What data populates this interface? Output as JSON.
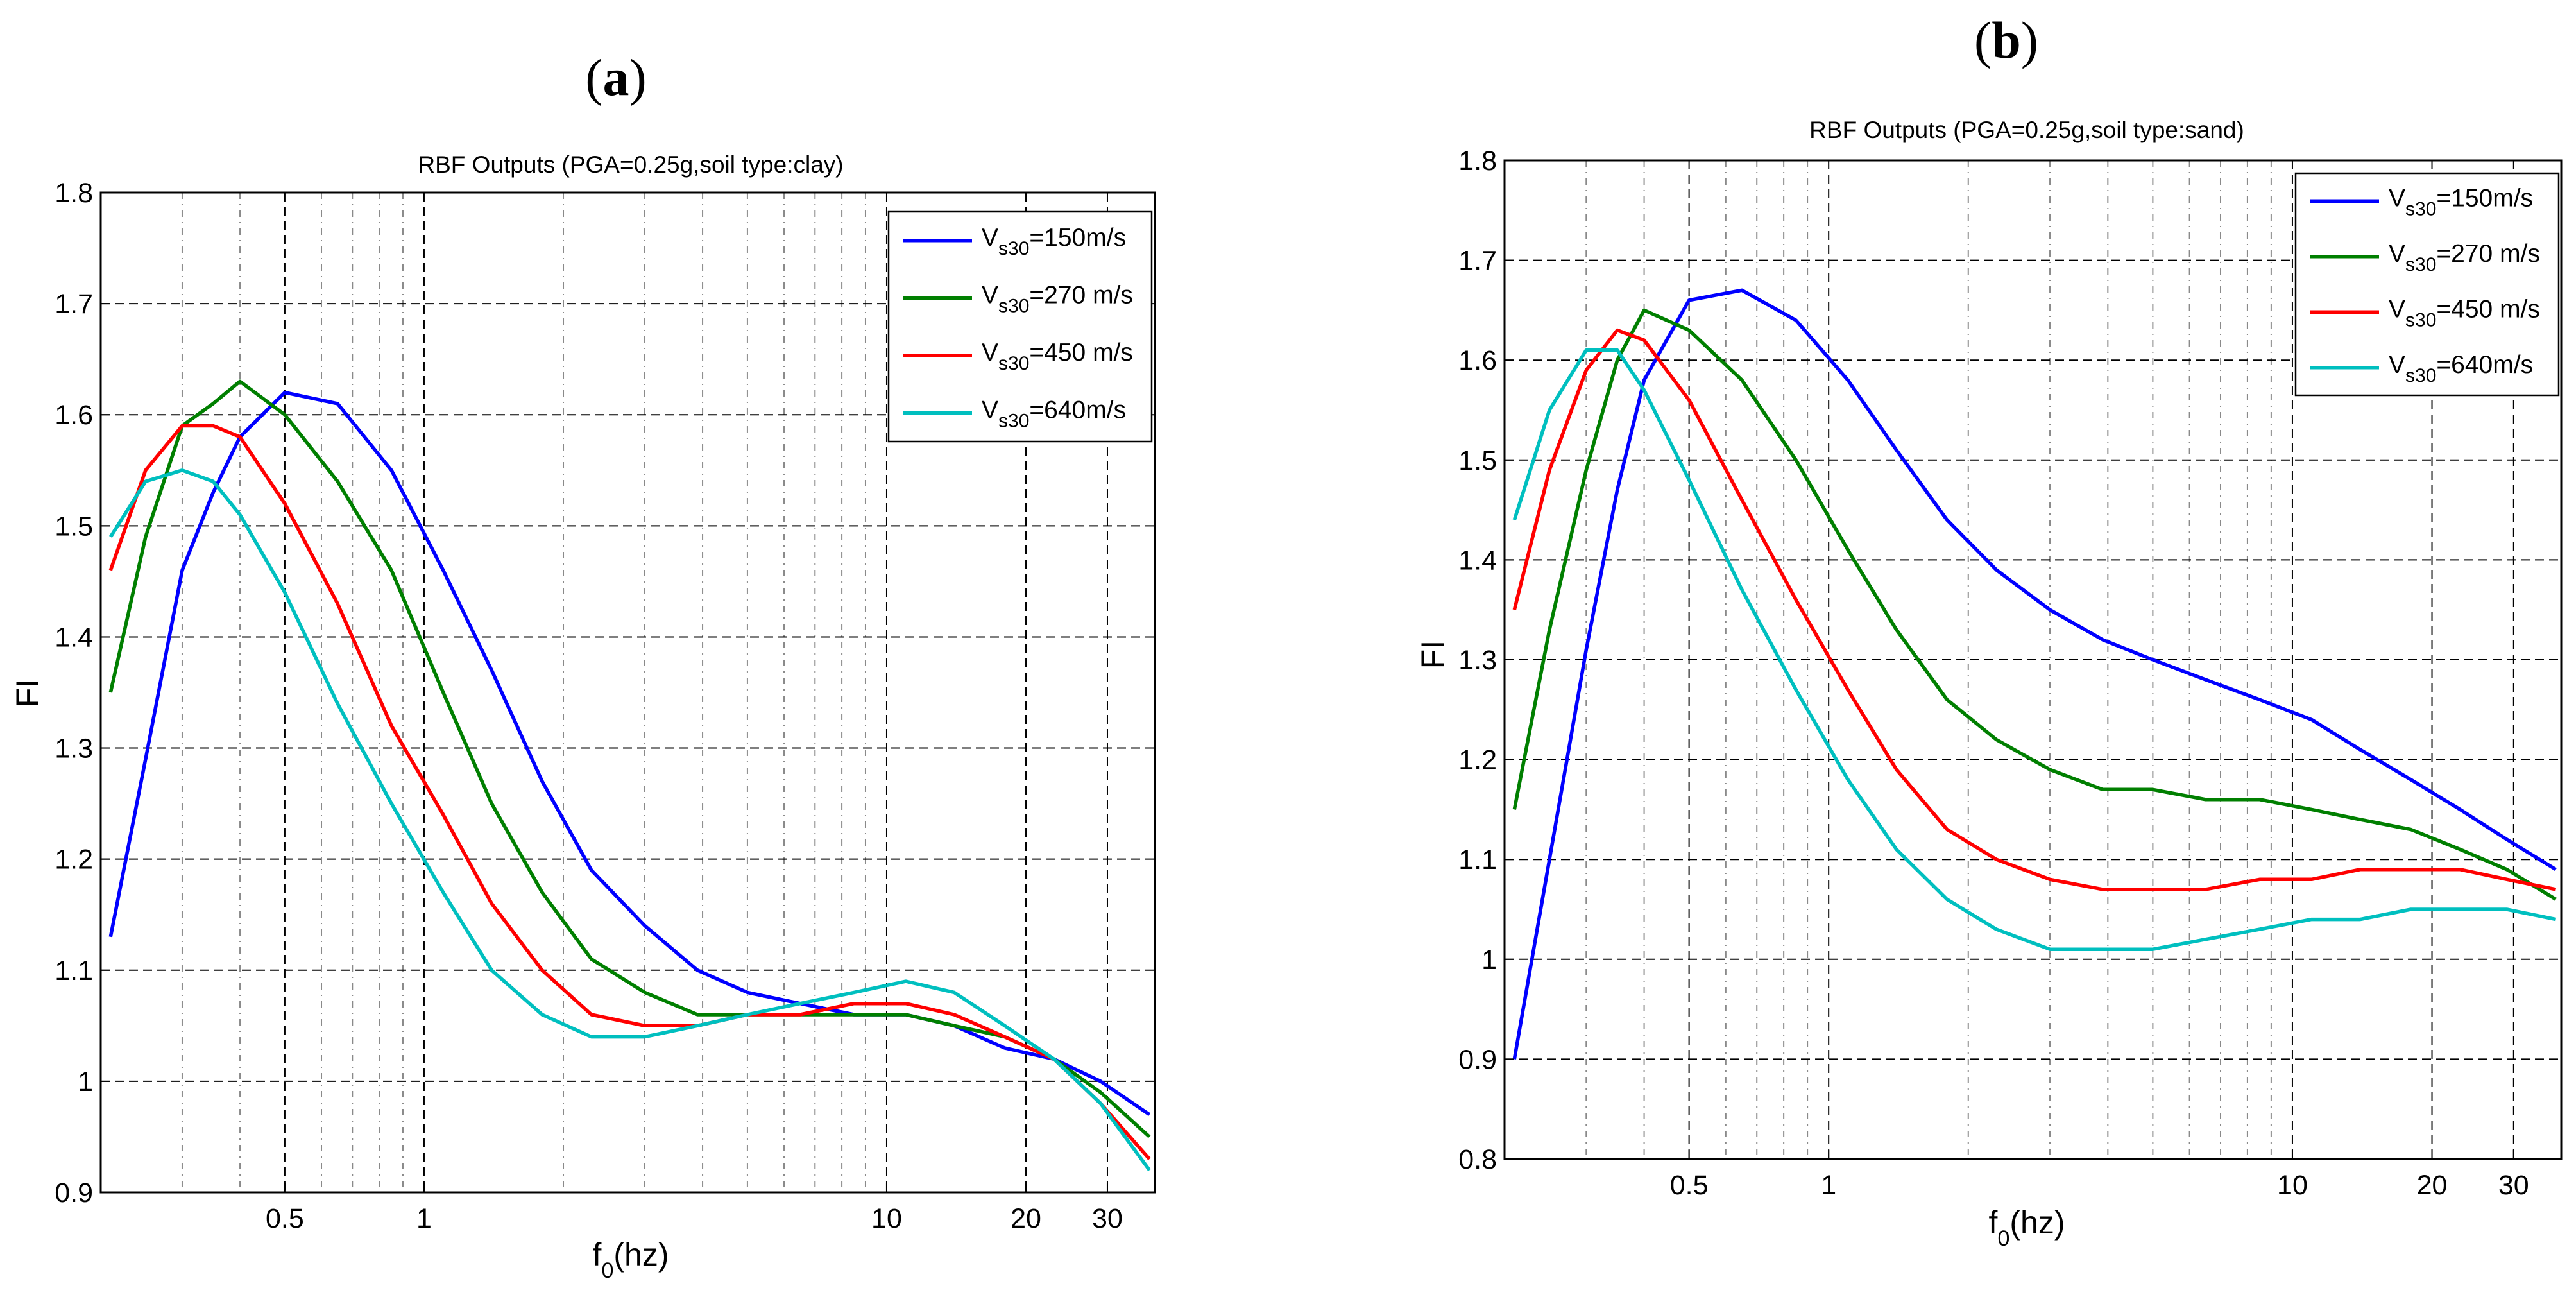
{
  "panels": [
    {
      "label": "(a)",
      "label_letter": "a"
    },
    {
      "label": "(b)",
      "label_letter": "b"
    }
  ],
  "chart_data": [
    {
      "type": "line",
      "title": "RBF Outputs (PGA=0.25g,soil type:clay)",
      "xlabel": "f0(hz)",
      "xlabel_base": "f",
      "xlabel_sub": "0",
      "xlabel_rest": "(hz)",
      "ylabel": "FI",
      "xscale": "log",
      "xlim": [
        0.2,
        38
      ],
      "ylim": [
        0.9,
        1.8
      ],
      "grid": true,
      "legend_position": "top-right",
      "xticks": [
        0.5,
        1,
        10,
        20,
        30
      ],
      "xtick_labels": [
        "0.5",
        "1",
        "10",
        "20",
        "30"
      ],
      "yticks": [
        0.9,
        1.0,
        1.1,
        1.2,
        1.3,
        1.4,
        1.5,
        1.6,
        1.7,
        1.8
      ],
      "ytick_labels": [
        "0.9",
        "1",
        "1.1",
        "1.2",
        "1.3",
        "1.4",
        "1.5",
        "1.6",
        "1.7",
        "1.8"
      ],
      "series": [
        {
          "name": "Vs30=150m/s",
          "label_main": "V",
          "label_sub": "s30",
          "label_rest": "=150m/s",
          "color": "#0000ff",
          "x": [
            0.21,
            0.25,
            0.3,
            0.35,
            0.4,
            0.5,
            0.65,
            0.85,
            1.1,
            1.4,
            1.8,
            2.3,
            3.0,
            3.9,
            5.0,
            6.5,
            8.5,
            11,
            14,
            18,
            23,
            29,
            37
          ],
          "y": [
            1.13,
            1.29,
            1.46,
            1.53,
            1.58,
            1.62,
            1.61,
            1.55,
            1.46,
            1.37,
            1.27,
            1.19,
            1.14,
            1.1,
            1.08,
            1.07,
            1.06,
            1.06,
            1.05,
            1.03,
            1.02,
            1.0,
            0.97
          ]
        },
        {
          "name": "Vs30=270 m/s",
          "label_main": "V",
          "label_sub": "s30",
          "label_rest": "=270 m/s",
          "color": "#007f00",
          "x": [
            0.21,
            0.25,
            0.3,
            0.35,
            0.4,
            0.5,
            0.65,
            0.85,
            1.1,
            1.4,
            1.8,
            2.3,
            3.0,
            3.9,
            5.0,
            6.5,
            8.5,
            11,
            14,
            18,
            23,
            29,
            37
          ],
          "y": [
            1.35,
            1.49,
            1.59,
            1.61,
            1.63,
            1.6,
            1.54,
            1.46,
            1.35,
            1.25,
            1.17,
            1.11,
            1.08,
            1.06,
            1.06,
            1.06,
            1.06,
            1.06,
            1.05,
            1.04,
            1.02,
            0.99,
            0.95
          ]
        },
        {
          "name": "Vs30=450 m/s",
          "label_main": "V",
          "label_sub": "s30",
          "label_rest": "=450 m/s",
          "color": "#ff0000",
          "x": [
            0.21,
            0.25,
            0.3,
            0.35,
            0.4,
            0.5,
            0.65,
            0.85,
            1.1,
            1.4,
            1.8,
            2.3,
            3.0,
            3.9,
            5.0,
            6.5,
            8.5,
            11,
            14,
            18,
            23,
            29,
            37
          ],
          "y": [
            1.46,
            1.55,
            1.59,
            1.59,
            1.58,
            1.52,
            1.43,
            1.32,
            1.24,
            1.16,
            1.1,
            1.06,
            1.05,
            1.05,
            1.06,
            1.06,
            1.07,
            1.07,
            1.06,
            1.04,
            1.02,
            0.98,
            0.93
          ]
        },
        {
          "name": "Vs30=640m/s",
          "label_main": "V",
          "label_sub": "s30",
          "label_rest": "=640m/s",
          "color": "#00bfbf",
          "x": [
            0.21,
            0.25,
            0.3,
            0.35,
            0.4,
            0.5,
            0.65,
            0.85,
            1.1,
            1.4,
            1.8,
            2.3,
            3.0,
            3.9,
            5.0,
            6.5,
            8.5,
            11,
            14,
            18,
            23,
            29,
            37
          ],
          "y": [
            1.49,
            1.54,
            1.55,
            1.54,
            1.51,
            1.44,
            1.34,
            1.25,
            1.17,
            1.1,
            1.06,
            1.04,
            1.04,
            1.05,
            1.06,
            1.07,
            1.08,
            1.09,
            1.08,
            1.05,
            1.02,
            0.98,
            0.92
          ]
        }
      ]
    },
    {
      "type": "line",
      "title": "RBF Outputs (PGA=0.25g,soil type:sand)",
      "xlabel": "f0(hz)",
      "xlabel_base": "f",
      "xlabel_sub": "0",
      "xlabel_rest": "(hz)",
      "ylabel": "FI",
      "xscale": "log",
      "xlim": [
        0.2,
        38
      ],
      "ylim": [
        0.8,
        1.8
      ],
      "grid": true,
      "legend_position": "top-right",
      "xticks": [
        0.5,
        1,
        10,
        20,
        30
      ],
      "xtick_labels": [
        "0.5",
        "1",
        "10",
        "20",
        "30"
      ],
      "yticks": [
        0.8,
        0.9,
        1.0,
        1.1,
        1.2,
        1.3,
        1.4,
        1.5,
        1.6,
        1.7,
        1.8
      ],
      "ytick_labels": [
        "0.8",
        "0.9",
        "1",
        "1.1",
        "1.2",
        "1.3",
        "1.4",
        "1.5",
        "1.6",
        "1.7",
        "1.8"
      ],
      "series": [
        {
          "name": "Vs30=150m/s",
          "label_main": "V",
          "label_sub": "s30",
          "label_rest": "=150m/s",
          "color": "#0000ff",
          "x": [
            0.21,
            0.25,
            0.3,
            0.35,
            0.4,
            0.5,
            0.65,
            0.85,
            1.1,
            1.4,
            1.8,
            2.3,
            3.0,
            3.9,
            5.0,
            6.5,
            8.5,
            11,
            14,
            18,
            23,
            29,
            37
          ],
          "y": [
            0.9,
            1.1,
            1.31,
            1.47,
            1.58,
            1.66,
            1.67,
            1.64,
            1.58,
            1.51,
            1.44,
            1.39,
            1.35,
            1.32,
            1.3,
            1.28,
            1.26,
            1.24,
            1.21,
            1.18,
            1.15,
            1.12,
            1.09
          ]
        },
        {
          "name": "Vs30=270 m/s",
          "label_main": "V",
          "label_sub": "s30",
          "label_rest": "=270 m/s",
          "color": "#007f00",
          "x": [
            0.21,
            0.25,
            0.3,
            0.35,
            0.4,
            0.5,
            0.65,
            0.85,
            1.1,
            1.4,
            1.8,
            2.3,
            3.0,
            3.9,
            5.0,
            6.5,
            8.5,
            11,
            14,
            18,
            23,
            29,
            37
          ],
          "y": [
            1.15,
            1.33,
            1.49,
            1.6,
            1.65,
            1.63,
            1.58,
            1.5,
            1.41,
            1.33,
            1.26,
            1.22,
            1.19,
            1.17,
            1.17,
            1.16,
            1.16,
            1.15,
            1.14,
            1.13,
            1.11,
            1.09,
            1.06
          ]
        },
        {
          "name": "Vs30=450 m/s",
          "label_main": "V",
          "label_sub": "s30",
          "label_rest": "=450 m/s",
          "color": "#ff0000",
          "x": [
            0.21,
            0.25,
            0.3,
            0.35,
            0.4,
            0.5,
            0.65,
            0.85,
            1.1,
            1.4,
            1.8,
            2.3,
            3.0,
            3.9,
            5.0,
            6.5,
            8.5,
            11,
            14,
            18,
            23,
            29,
            37
          ],
          "y": [
            1.35,
            1.49,
            1.59,
            1.63,
            1.62,
            1.56,
            1.46,
            1.36,
            1.27,
            1.19,
            1.13,
            1.1,
            1.08,
            1.07,
            1.07,
            1.07,
            1.08,
            1.08,
            1.09,
            1.09,
            1.09,
            1.08,
            1.07
          ]
        },
        {
          "name": "Vs30=640m/s",
          "label_main": "V",
          "label_sub": "s30",
          "label_rest": "=640m/s",
          "color": "#00bfbf",
          "x": [
            0.21,
            0.25,
            0.3,
            0.35,
            0.4,
            0.5,
            0.65,
            0.85,
            1.1,
            1.4,
            1.8,
            2.3,
            3.0,
            3.9,
            5.0,
            6.5,
            8.5,
            11,
            14,
            18,
            23,
            29,
            37
          ],
          "y": [
            1.44,
            1.55,
            1.61,
            1.61,
            1.57,
            1.48,
            1.37,
            1.27,
            1.18,
            1.11,
            1.06,
            1.03,
            1.01,
            1.01,
            1.01,
            1.02,
            1.03,
            1.04,
            1.04,
            1.05,
            1.05,
            1.05,
            1.04
          ]
        }
      ]
    }
  ]
}
